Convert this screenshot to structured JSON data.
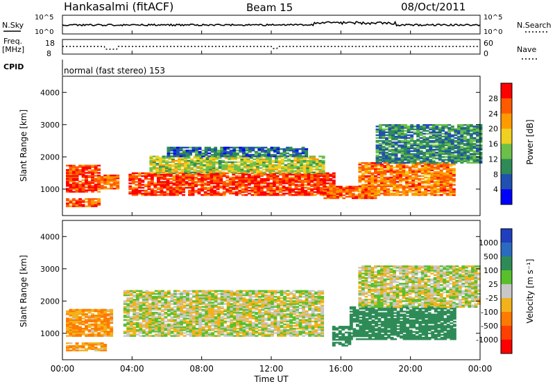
{
  "header": {
    "site": "Hankasalmi (fitACF)",
    "beam": "Beam 15",
    "date": "08/Oct/2011"
  },
  "noise": {
    "left_label": "N.Sky",
    "right_label": "N.Search",
    "ticks_left": [
      "10^5",
      "10^0"
    ],
    "ticks_right": [
      "10^5",
      "10^0"
    ]
  },
  "freq": {
    "label_top": "Freq.",
    "label_unit": "[MHz]",
    "ticks_left": [
      "18",
      "8"
    ],
    "ticks_right": [
      "60",
      "0"
    ],
    "right_label": "Nave"
  },
  "cpid": {
    "label": "CPID",
    "text": "normal (fast stereo) 153"
  },
  "power_panel": {
    "ylabel": "Slant Range [km]",
    "yticks": [
      "4000",
      "3000",
      "2000",
      "1000"
    ],
    "colorbar_label": "Power [dB]",
    "colorbar_ticks": [
      "28",
      "24",
      "20",
      "16",
      "12",
      "8",
      "4"
    ],
    "colors": [
      "#0000ff",
      "#2050b0",
      "#2e8b57",
      "#6cc04a",
      "#f0d020",
      "#ff9a00",
      "#ff5a00",
      "#ff0000"
    ]
  },
  "velocity_panel": {
    "ylabel": "Slant Range [km]",
    "yticks": [
      "4000",
      "3000",
      "2000",
      "1000"
    ],
    "colorbar_label": "Velocity [m s⁻¹]",
    "colorbar_ticks": [
      "1000",
      "500",
      "100",
      "25",
      "-25",
      "-100",
      "-500",
      "-1000"
    ],
    "colors": [
      "#1f3fbf",
      "#2a6bbf",
      "#2e8b57",
      "#59c02c",
      "#c8c8c8",
      "#f2b21b",
      "#ff7a00",
      "#ff4000",
      "#ff0000"
    ]
  },
  "xaxis": {
    "label": "Time UT",
    "ticks": [
      "00:00",
      "04:00",
      "08:00",
      "12:00",
      "16:00",
      "20:00",
      "00:00"
    ]
  },
  "chart_data": {
    "type": "heatmap",
    "title": "Hankasalmi (fitACF)",
    "subtitle": "Beam 15",
    "xlabel": "Time UT",
    "xlim": [
      "00:00",
      "24:00"
    ],
    "panels": [
      {
        "name": "Power",
        "ylabel": "Slant Range [km]",
        "ylim": [
          180,
          4500
        ],
        "colorbar": "Power [dB]",
        "colorbar_range": [
          0,
          32
        ],
        "regions": [
          {
            "t_start": 0.2,
            "t_end": 2.0,
            "range_low": 900,
            "range_high": 1750,
            "value": 28
          },
          {
            "t_start": 0.2,
            "t_end": 2.0,
            "range_low": 450,
            "range_high": 700,
            "value": 26
          },
          {
            "t_start": 2.0,
            "t_end": 3.2,
            "range_low": 1000,
            "range_high": 1450,
            "value": 24
          },
          {
            "t_start": 3.8,
            "t_end": 15.5,
            "range_low": 800,
            "range_high": 1500,
            "value": 28
          },
          {
            "t_start": 5.0,
            "t_end": 15.0,
            "range_low": 1500,
            "range_high": 2000,
            "value": 16
          },
          {
            "t_start": 6.0,
            "t_end": 14.0,
            "range_low": 2000,
            "range_high": 2300,
            "value": 8
          },
          {
            "t_start": 15.0,
            "t_end": 18.0,
            "range_low": 700,
            "range_high": 1100,
            "value": 26
          },
          {
            "t_start": 17.0,
            "t_end": 22.5,
            "range_low": 800,
            "range_high": 1800,
            "value": 24
          },
          {
            "t_start": 18.0,
            "t_end": 24.0,
            "range_low": 1800,
            "range_high": 3000,
            "value": 10
          }
        ]
      },
      {
        "name": "Velocity",
        "ylabel": "Slant Range [km]",
        "ylim": [
          180,
          4500
        ],
        "colorbar": "Velocity [m s⁻¹]",
        "colorbar_range": [
          -1000,
          1000
        ],
        "regions": [
          {
            "t_start": 0.2,
            "t_end": 2.8,
            "range_low": 900,
            "range_high": 1750,
            "value": -100
          },
          {
            "t_start": 0.2,
            "t_end": 2.5,
            "range_low": 450,
            "range_high": 700,
            "value": -100
          },
          {
            "t_start": 3.5,
            "t_end": 15.0,
            "range_low": 900,
            "range_high": 2300,
            "value": 0
          },
          {
            "t_start": 15.5,
            "t_end": 16.5,
            "range_low": 600,
            "range_high": 1200,
            "value": 300
          },
          {
            "t_start": 16.5,
            "t_end": 22.5,
            "range_low": 800,
            "range_high": 1800,
            "value": 200
          },
          {
            "t_start": 17.0,
            "t_end": 24.0,
            "range_low": 1800,
            "range_high": 3100,
            "value": 0
          }
        ]
      }
    ]
  }
}
